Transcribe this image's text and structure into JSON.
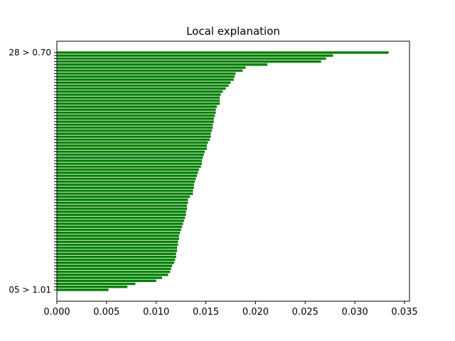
{
  "chart_data": {
    "type": "bar",
    "orientation": "horizontal",
    "title": "Local explanation",
    "xlabel": "",
    "ylabel": "",
    "xlim": [
      0,
      0.0355
    ],
    "xticks": [
      "0.000",
      "0.005",
      "0.010",
      "0.015",
      "0.020",
      "0.025",
      "0.030",
      "0.035"
    ],
    "xtick_values": [
      0,
      0.005,
      0.01,
      0.015,
      0.02,
      0.025,
      0.03,
      0.035
    ],
    "grid": false,
    "legend": "none",
    "bar_color": "#008000",
    "ytick_labels_top_to_bottom": [
      "28 > 0.70",
      "",
      "",
      "",
      "",
      "",
      "",
      "",
      "",
      "",
      "",
      "",
      "",
      "",
      "",
      "",
      "",
      "",
      "",
      "",
      "",
      "",
      "",
      "",
      "",
      "",
      "",
      "",
      "",
      "",
      "",
      "",
      "",
      "",
      "",
      "",
      "",
      "",
      "",
      "",
      "",
      "",
      "",
      "",
      "",
      "",
      "",
      "",
      "",
      "",
      "",
      "",
      "",
      "",
      "",
      "",
      "",
      "",
      "",
      "",
      "",
      "",
      "",
      "",
      "",
      "",
      "",
      "",
      "",
      "",
      "",
      "",
      "",
      "",
      "",
      "",
      "",
      "",
      "",
      "05 > 1.01"
    ],
    "values_top_to_bottom": [
      0.0334,
      0.0278,
      0.0271,
      0.0266,
      0.0212,
      0.019,
      0.0187,
      0.018,
      0.0179,
      0.0178,
      0.0175,
      0.0173,
      0.017,
      0.0167,
      0.0165,
      0.0164,
      0.0164,
      0.0164,
      0.0161,
      0.016,
      0.016,
      0.0159,
      0.0158,
      0.0158,
      0.0157,
      0.0157,
      0.0156,
      0.0155,
      0.0155,
      0.0154,
      0.0152,
      0.0151,
      0.0151,
      0.0149,
      0.0148,
      0.0147,
      0.0146,
      0.0146,
      0.0145,
      0.0143,
      0.0142,
      0.0141,
      0.014,
      0.0139,
      0.0138,
      0.0138,
      0.0137,
      0.0137,
      0.0134,
      0.0132,
      0.0132,
      0.0131,
      0.0131,
      0.013,
      0.013,
      0.0129,
      0.0128,
      0.0127,
      0.0126,
      0.0125,
      0.0124,
      0.0123,
      0.0123,
      0.0122,
      0.0122,
      0.0121,
      0.0121,
      0.012,
      0.012,
      0.0119,
      0.0118,
      0.0116,
      0.0115,
      0.0114,
      0.0112,
      0.0106,
      0.01,
      0.0079,
      0.0071,
      0.0052
    ]
  }
}
